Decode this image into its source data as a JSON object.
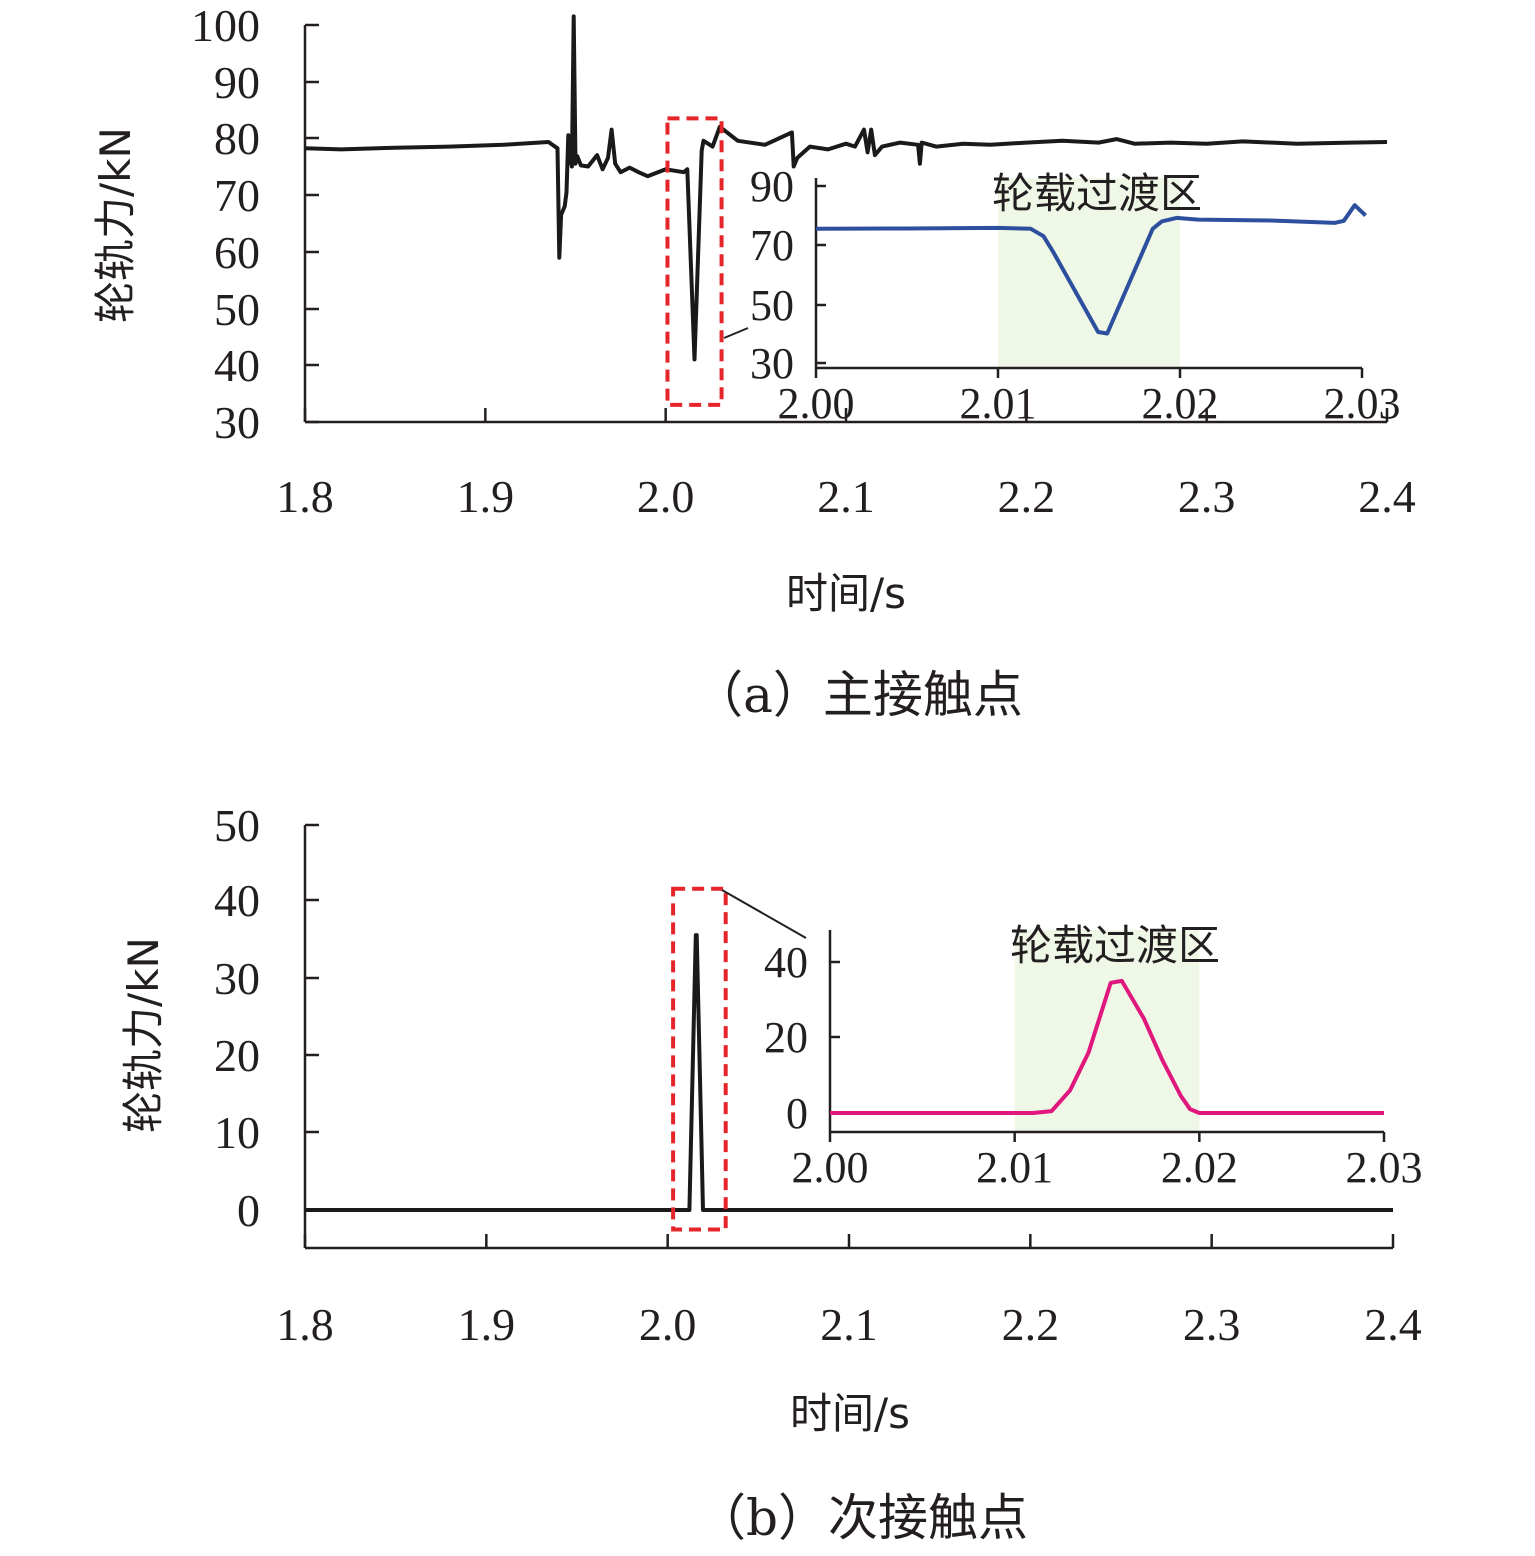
{
  "panels": [
    {
      "caption": "（a）主接触点",
      "xlabel": "时间/s",
      "ylabel": "轮轨力/kN",
      "xticks": [
        "1.8",
        "1.9",
        "2.0",
        "2.1",
        "2.2",
        "2.3",
        "2.4"
      ],
      "yticks": [
        "30",
        "40",
        "50",
        "60",
        "70",
        "80",
        "90",
        "100"
      ],
      "inset": {
        "region_label": "轮载过渡区",
        "xticks": [
          "2.00",
          "2.01",
          "2.02",
          "2.03"
        ],
        "yticks": [
          "30",
          "50",
          "70",
          "90"
        ]
      }
    },
    {
      "caption": "（b）次接触点",
      "xlabel": "时间/s",
      "ylabel": "轮轨力/kN",
      "xticks": [
        "1.8",
        "1.9",
        "2.0",
        "2.1",
        "2.2",
        "2.3",
        "2.4"
      ],
      "yticks": [
        "0",
        "10",
        "20",
        "30",
        "40",
        "50"
      ],
      "inset": {
        "region_label": "轮载过渡区",
        "xticks": [
          "2.00",
          "2.01",
          "2.02",
          "2.03"
        ],
        "yticks": [
          "0",
          "20",
          "40"
        ]
      }
    }
  ],
  "chart_data": [
    {
      "type": "line",
      "title": "（a）主接触点",
      "xlabel": "时间/s",
      "ylabel": "轮轨力/kN",
      "xlim": [
        1.8,
        2.4
      ],
      "ylim": [
        30,
        100
      ],
      "grid": false,
      "series": [
        {
          "color": "#1a1a1a",
          "x": [
            1.8,
            1.82,
            1.85,
            1.88,
            1.91,
            1.935,
            1.94,
            1.941,
            1.942,
            1.944,
            1.945,
            1.946,
            1.947,
            1.948,
            1.949,
            1.95,
            1.951,
            1.953,
            1.957,
            1.962,
            1.965,
            1.968,
            1.97,
            1.972,
            1.975,
            1.98,
            1.985,
            1.99,
            2.0,
            2.01,
            2.012,
            2.016,
            2.02,
            2.021,
            2.026,
            2.03,
            2.04,
            2.055,
            2.07,
            2.071,
            2.073,
            2.08,
            2.09,
            2.1,
            2.105,
            2.11,
            2.112,
            2.114,
            2.116,
            2.12,
            2.13,
            2.14,
            2.141,
            2.142,
            2.15,
            2.165,
            2.18,
            2.2,
            2.22,
            2.24,
            2.25,
            2.26,
            2.28,
            2.3,
            2.32,
            2.35,
            2.38,
            2.4
          ],
          "y": [
            78.2,
            78.0,
            78.3,
            78.5,
            78.8,
            79.3,
            78.2,
            59.0,
            66.5,
            68.0,
            70.5,
            80.5,
            76.5,
            75.0,
            101.5,
            75.5,
            76.8,
            75.2,
            75.0,
            77.0,
            74.5,
            76.5,
            81.5,
            75.5,
            74.0,
            74.8,
            74.0,
            73.3,
            74.5,
            74.0,
            74.5,
            41.0,
            77.8,
            79.5,
            78.5,
            82.0,
            79.5,
            78.8,
            81.0,
            75.0,
            76.5,
            78.5,
            78.0,
            79.0,
            78.5,
            81.5,
            77.5,
            81.5,
            77.0,
            78.5,
            79.2,
            78.8,
            75.5,
            79.2,
            78.5,
            79.0,
            78.8,
            79.2,
            79.5,
            79.2,
            79.8,
            79.0,
            79.2,
            79.0,
            79.4,
            79.0,
            79.2,
            79.3
          ]
        }
      ],
      "inset": {
        "xlim": [
          2.0,
          2.03
        ],
        "ylim": [
          30,
          90
        ],
        "highlight_region": [
          2.01,
          2.02
        ],
        "region_label": "轮载过渡区",
        "highlight_color": "#eff7e6",
        "line_color": "#2c4f9e",
        "x": [
          2.0,
          2.005,
          2.01,
          2.0118,
          2.0125,
          2.013,
          2.0155,
          2.016,
          2.0185,
          2.019,
          2.0198,
          2.021,
          2.025,
          2.0285,
          2.029,
          2.0296,
          2.0302
        ],
        "y": [
          75.5,
          75.6,
          75.8,
          75.5,
          73.0,
          68.0,
          40.5,
          40.0,
          75.5,
          78.0,
          79.2,
          78.6,
          78.3,
          77.5,
          78.2,
          83.5,
          80.0
        ]
      },
      "zoom_box": {
        "x": [
          2.001,
          2.031
        ],
        "y": [
          33.0,
          83.5
        ],
        "color": "#e5252a"
      }
    },
    {
      "type": "line",
      "title": "（b）次接触点",
      "xlabel": "时间/s",
      "ylabel": "轮轨力/kN",
      "xlim": [
        1.8,
        2.4
      ],
      "ylim": [
        -5,
        50
      ],
      "grid": false,
      "series": [
        {
          "color": "#1a1a1a",
          "x": [
            1.8,
            2.01,
            2.012,
            2.0155,
            2.016,
            2.0195,
            2.02,
            2.4
          ],
          "y": [
            0,
            0,
            0,
            35.5,
            35.5,
            0,
            0,
            0
          ]
        }
      ],
      "inset": {
        "xlim": [
          2.0,
          2.03
        ],
        "ylim": [
          -5,
          50
        ],
        "highlight_region": [
          2.01,
          2.02
        ],
        "region_label": "轮载过渡区",
        "highlight_color": "#eff7e6",
        "line_color": "#e0177d",
        "x": [
          2.0,
          2.011,
          2.012,
          2.013,
          2.014,
          2.0152,
          2.0158,
          2.017,
          2.018,
          2.019,
          2.0195,
          2.02,
          2.03
        ],
        "y": [
          0,
          0,
          0.5,
          6.0,
          16.0,
          34.5,
          35.0,
          25.0,
          14.0,
          4.5,
          1.0,
          0,
          0
        ]
      },
      "zoom_box": {
        "x": [
          2.003,
          2.032
        ],
        "y": [
          -2.5,
          41.5
        ],
        "color": "#e5252a"
      }
    }
  ]
}
